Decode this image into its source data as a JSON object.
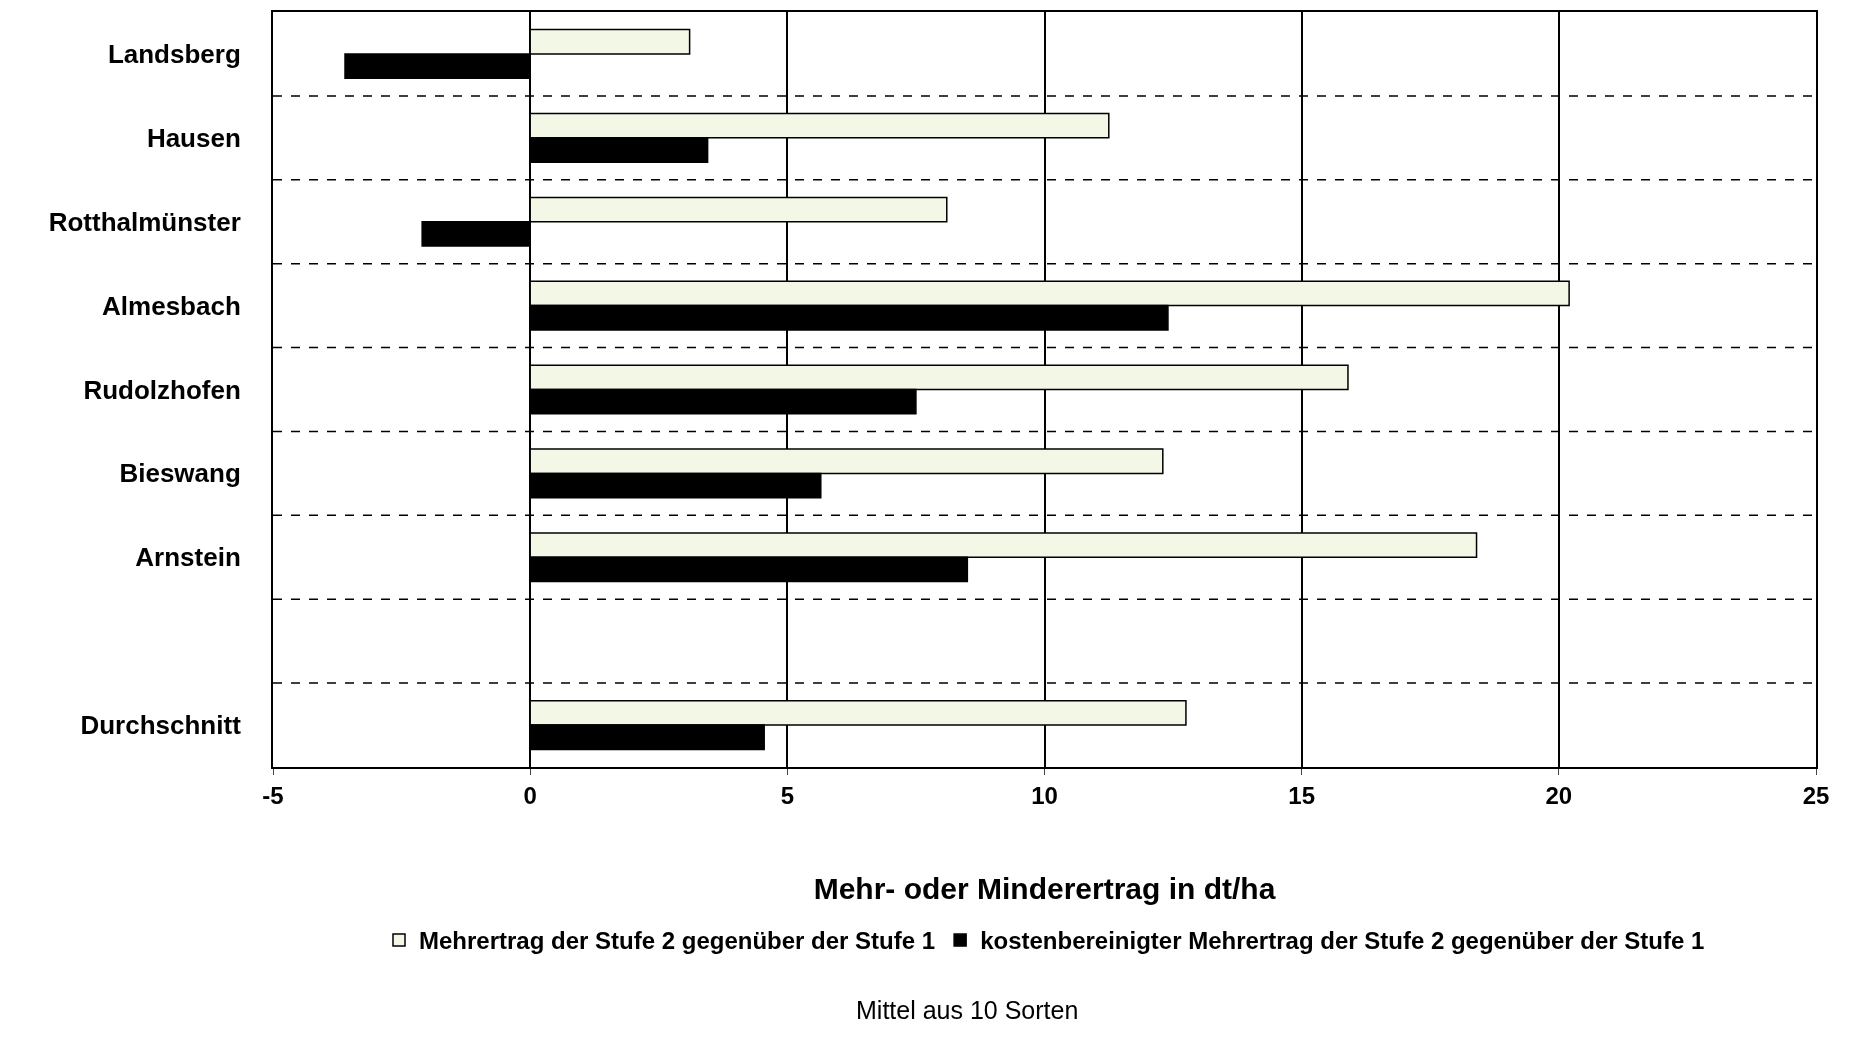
{
  "chart_data": {
    "type": "bar",
    "orientation": "horizontal",
    "categories": [
      "Landsberg",
      "Hausen",
      "Rotthalmünster",
      "Almesbach",
      "Rudolzhofen",
      "Bieswang",
      "Arnstein",
      null,
      "Durchschnitt"
    ],
    "series": [
      {
        "name": "Mehrertrag der Stufe 2 gegenüber der Stufe 1",
        "color": "#f3f8e6",
        "values": [
          3.1,
          11.25,
          8.1,
          20.2,
          15.9,
          12.3,
          18.4,
          null,
          12.75
        ]
      },
      {
        "name": "kostenbereinigter Mehrertrag der Stufe 2 gegenüber der Stufe 1",
        "color": "#000000",
        "values": [
          -3.6,
          3.45,
          -2.1,
          12.4,
          7.5,
          5.65,
          8.5,
          null,
          4.55
        ]
      }
    ],
    "xlim": [
      -5,
      25
    ],
    "xticks": [
      -5,
      0,
      5,
      10,
      15,
      20,
      25
    ],
    "xlabel": "Mehr- oder Minderertrag in dt/ha",
    "grid": true,
    "legend": "bottom",
    "annotations": [
      "Mittel aus 10 Sorten"
    ]
  }
}
